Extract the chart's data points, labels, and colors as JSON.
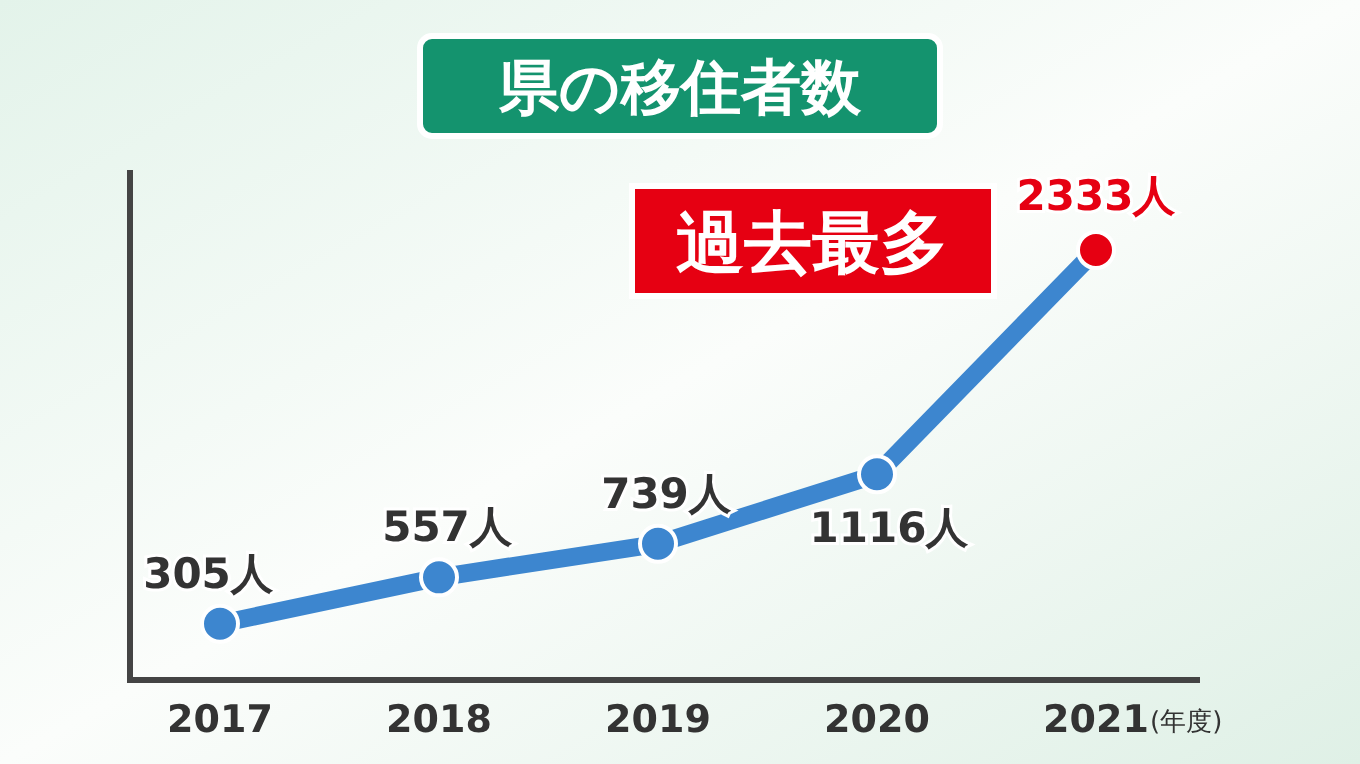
{
  "chart_data": {
    "type": "line",
    "title": "県の移住者数",
    "xlabel": "(年度)",
    "categories": [
      "2017",
      "2018",
      "2019",
      "2020",
      "2021"
    ],
    "series": [
      {
        "color": "#3d86cf",
        "values": [
          305,
          557,
          739,
          1116,
          2333
        ],
        "colors": [
          "#3d86cf",
          "#3d86cf",
          "#3d86cf",
          "#3d86cf",
          "#e60012"
        ],
        "value_labels": [
          "305人",
          "557人",
          "739人",
          "1116人",
          "2333人"
        ]
      }
    ],
    "marker": "circle",
    "annotations": [
      "過去最多"
    ],
    "grid": false
  }
}
